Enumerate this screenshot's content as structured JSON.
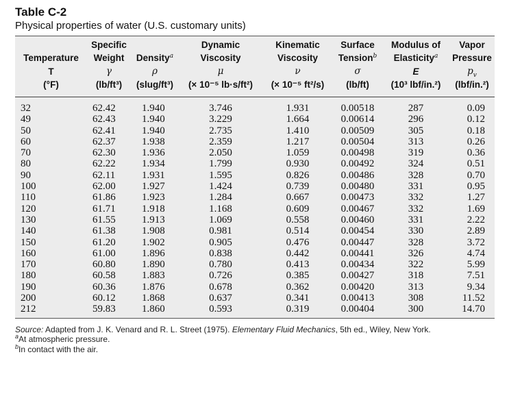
{
  "table": {
    "id": "Table C-2",
    "caption": "Physical properties of water (U.S. customary units)",
    "header": {
      "row1": [
        "",
        "Specific",
        "",
        "Dynamic",
        "Kinematic",
        "Surface",
        "Modulus of",
        "Vapor"
      ],
      "row2": [
        "Temperature",
        "Weight",
        "Density",
        "Viscosity",
        "Viscosity",
        "Tension",
        "Elasticity",
        "Pressure"
      ],
      "row2_sup": [
        "",
        "",
        "a",
        "",
        "",
        "b",
        "a",
        ""
      ],
      "symbols": [
        "T",
        "γ",
        "ρ",
        "μ",
        "ν",
        "σ",
        "E",
        "p"
      ],
      "symbol_sub": [
        "",
        "",
        "",
        "",
        "",
        "",
        "",
        "v"
      ],
      "units": {
        "temp": "(°F)",
        "weight": "(lb/ft³)",
        "density": "(slug/ft³)",
        "dyn": "(× 10⁻⁵ lb·s/ft²)",
        "kin": "(× 10⁻⁵ ft²/s)",
        "tension": "(lb/ft)",
        "modulus": "(10³ lbf/in.²)",
        "vapor": "(lbf/in.²)"
      }
    },
    "rows": [
      [
        "32",
        "62.42",
        "1.940",
        "3.746",
        "1.931",
        "0.00518",
        "287",
        "0.09"
      ],
      [
        "49",
        "62.43",
        "1.940",
        "3.229",
        "1.664",
        "0.00614",
        "296",
        "0.12"
      ],
      [
        "50",
        "62.41",
        "1.940",
        "2.735",
        "1.410",
        "0.00509",
        "305",
        "0.18"
      ],
      [
        "60",
        "62.37",
        "1.938",
        "2.359",
        "1.217",
        "0.00504",
        "313",
        "0.26"
      ],
      [
        "70",
        "62.30",
        "1.936",
        "2.050",
        "1.059",
        "0.00498",
        "319",
        "0.36"
      ],
      [
        "80",
        "62.22",
        "1.934",
        "1.799",
        "0.930",
        "0.00492",
        "324",
        "0.51"
      ],
      [
        "90",
        "62.11",
        "1.931",
        "1.595",
        "0.826",
        "0.00486",
        "328",
        "0.70"
      ],
      [
        "100",
        "62.00",
        "1.927",
        "1.424",
        "0.739",
        "0.00480",
        "331",
        "0.95"
      ],
      [
        "110",
        "61.86",
        "1.923",
        "1.284",
        "0.667",
        "0.00473",
        "332",
        "1.27"
      ],
      [
        "120",
        "61.71",
        "1.918",
        "1.168",
        "0.609",
        "0.00467",
        "332",
        "1.69"
      ],
      [
        "130",
        "61.55",
        "1.913",
        "1.069",
        "0.558",
        "0.00460",
        "331",
        "2.22"
      ],
      [
        "140",
        "61.38",
        "1.908",
        "0.981",
        "0.514",
        "0.00454",
        "330",
        "2.89"
      ],
      [
        "150",
        "61.20",
        "1.902",
        "0.905",
        "0.476",
        "0.00447",
        "328",
        "3.72"
      ],
      [
        "160",
        "61.00",
        "1.896",
        "0.838",
        "0.442",
        "0.00441",
        "326",
        "4.74"
      ],
      [
        "170",
        "60.80",
        "1.890",
        "0.780",
        "0.413",
        "0.00434",
        "322",
        "5.99"
      ],
      [
        "180",
        "60.58",
        "1.883",
        "0.726",
        "0.385",
        "0.00427",
        "318",
        "7.51"
      ],
      [
        "190",
        "60.36",
        "1.876",
        "0.678",
        "0.362",
        "0.00420",
        "313",
        "9.34"
      ],
      [
        "200",
        "60.12",
        "1.868",
        "0.637",
        "0.341",
        "0.00413",
        "308",
        "11.52"
      ],
      [
        "212",
        "59.83",
        "1.860",
        "0.593",
        "0.319",
        "0.00404",
        "300",
        "14.70"
      ]
    ]
  },
  "notes": {
    "source_label": "Source:",
    "source_pre": " Adapted from J. K. Venard and R. L. Street (1975). ",
    "source_title": "Elementary Fluid Mechanics",
    "source_post": ", 5th ed., Wiley, New York.",
    "footnote_a_mark": "a",
    "footnote_a": "At atmospheric pressure.",
    "footnote_b_mark": "b",
    "footnote_b": "In contact with the air."
  }
}
